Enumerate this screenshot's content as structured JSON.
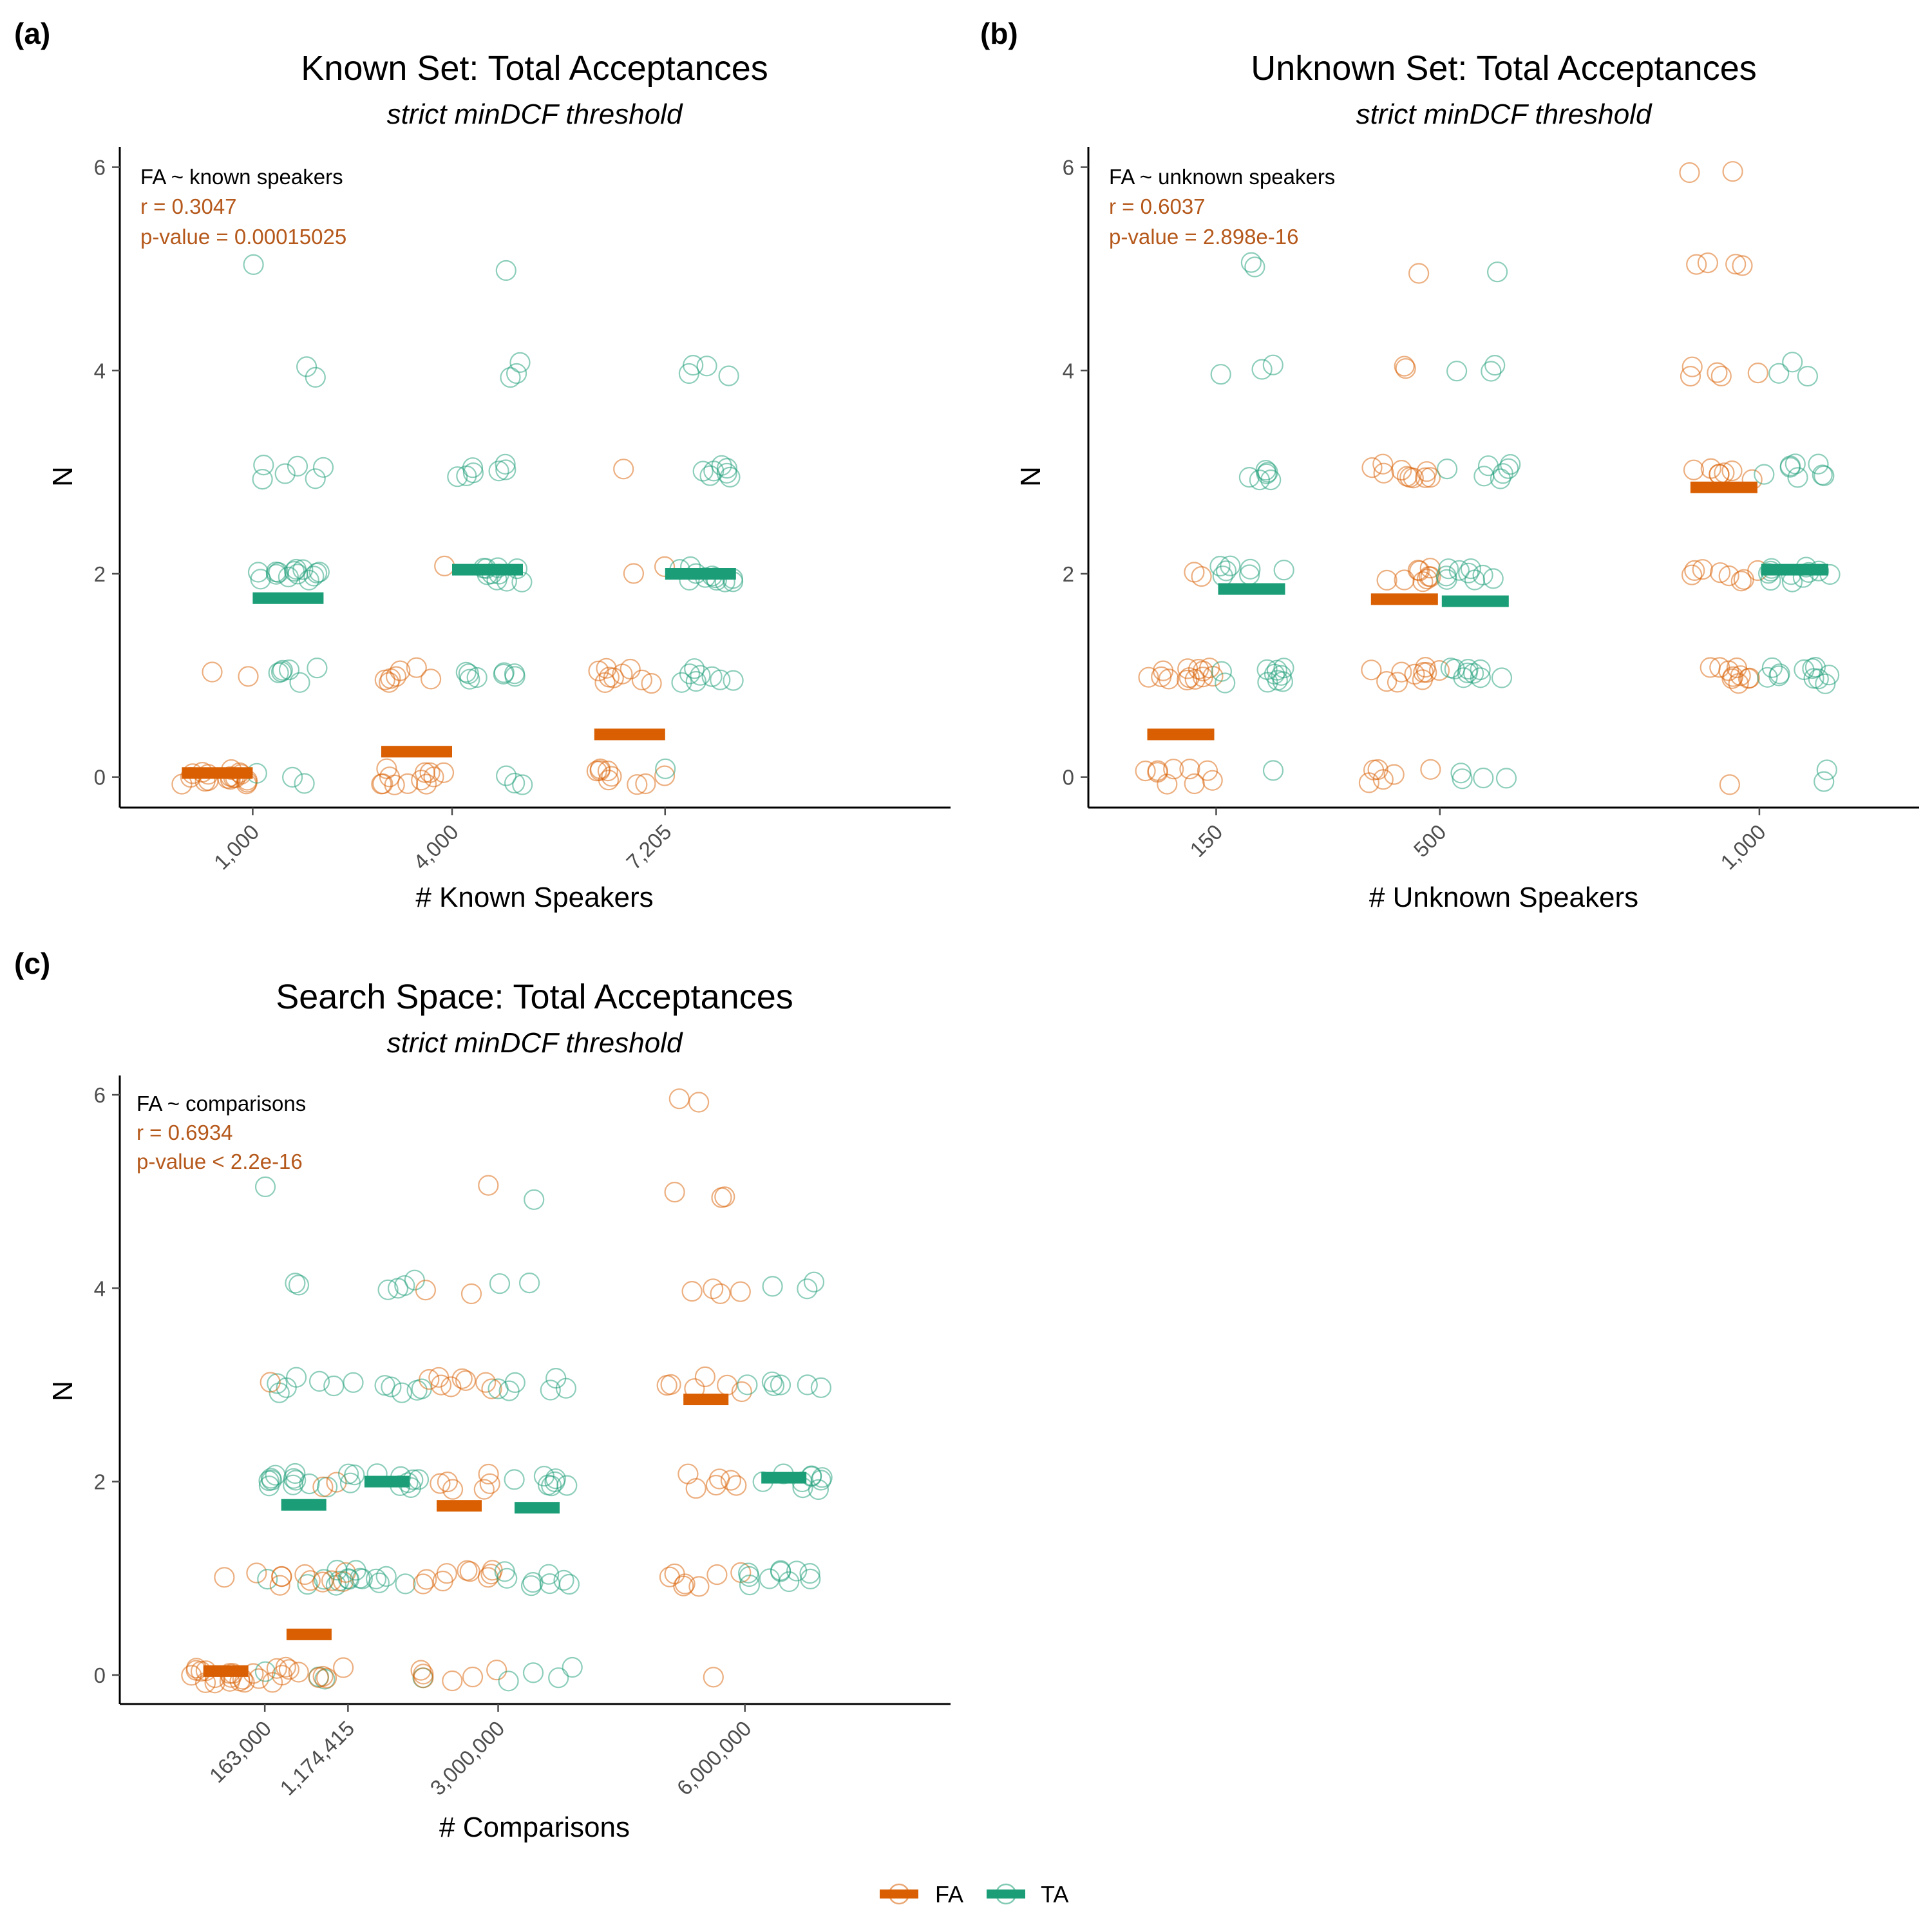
{
  "colors": {
    "FA": "#d95f02",
    "TA": "#1b9e77",
    "ann_stat": "#b5581b",
    "axis": "#000000",
    "tick": "#4d4d4d"
  },
  "legend": {
    "items": [
      {
        "key": "FA",
        "label": "FA"
      },
      {
        "key": "TA",
        "label": "TA"
      }
    ]
  },
  "chart_data": [
    {
      "panel_label": "(a)",
      "type": "scatter",
      "title": "Known Set: Total Acceptances",
      "subtitle": "strict minDCF threshold",
      "xlabel": "# Known Speakers",
      "ylabel": "N",
      "ylim": [
        -0.3,
        6.2
      ],
      "yticks": [
        0,
        2,
        4,
        6
      ],
      "xlim": [
        -1000,
        11500
      ],
      "x_ticks": [
        {
          "value": 1000,
          "label": "1,000"
        },
        {
          "value": 4000,
          "label": "4,000"
        },
        {
          "value": 7205,
          "label": "7,205"
        }
      ],
      "annotation": {
        "formula": "FA ~ known speakers",
        "r": "r = 0.3047",
        "p": "p-value = 0.00015025"
      },
      "means": [
        {
          "series": "FA",
          "x": 1000,
          "y": 0.04
        },
        {
          "series": "TA",
          "x": 1000,
          "y": 1.76
        },
        {
          "series": "FA",
          "x": 4000,
          "y": 0.25
        },
        {
          "series": "TA",
          "x": 4000,
          "y": 2.04
        },
        {
          "series": "FA",
          "x": 7205,
          "y": 0.42
        },
        {
          "series": "TA",
          "x": 7205,
          "y": 2.0
        }
      ],
      "points": [
        {
          "series": "FA",
          "x": 1000,
          "y": [
            0,
            0,
            0,
            0,
            0,
            0,
            0,
            0,
            0,
            0,
            0,
            0,
            0,
            0,
            0,
            0,
            0,
            0,
            1,
            1
          ]
        },
        {
          "series": "TA",
          "x": 1000,
          "y": [
            0,
            0,
            0,
            1,
            1,
            1,
            1,
            1,
            1,
            2,
            2,
            2,
            2,
            2,
            2,
            2,
            2,
            2,
            2,
            2,
            2,
            2,
            2,
            3,
            3,
            3,
            3,
            3,
            3,
            4,
            4,
            5
          ]
        },
        {
          "series": "FA",
          "x": 4000,
          "y": [
            0,
            0,
            0,
            0,
            0,
            0,
            0,
            0,
            0,
            0,
            0,
            0,
            1,
            1,
            1,
            1,
            1,
            1,
            1,
            2
          ]
        },
        {
          "series": "TA",
          "x": 4000,
          "y": [
            0,
            0,
            0,
            1,
            1,
            1,
            1,
            1,
            1,
            1,
            1,
            2,
            2,
            2,
            2,
            2,
            2,
            2,
            2,
            2,
            2,
            3,
            3,
            3,
            3,
            3,
            3,
            3,
            4,
            4,
            4,
            5
          ]
        },
        {
          "series": "FA",
          "x": 7205,
          "y": [
            0,
            0,
            0,
            0,
            0,
            0,
            0,
            0,
            0,
            1,
            1,
            1,
            1,
            1,
            1,
            1,
            1,
            1,
            2,
            2,
            3
          ]
        },
        {
          "series": "TA",
          "x": 7205,
          "y": [
            0,
            1,
            1,
            1,
            1,
            1,
            1,
            1,
            1,
            2,
            2,
            2,
            2,
            2,
            2,
            2,
            2,
            2,
            2,
            2,
            3,
            3,
            3,
            3,
            3,
            3,
            3,
            4,
            4,
            4,
            4
          ]
        }
      ]
    },
    {
      "panel_label": "(b)",
      "type": "scatter",
      "title": "Unknown Set: Total Acceptances",
      "subtitle": "strict minDCF threshold",
      "xlabel": "# Unknown Speakers",
      "ylabel": "N",
      "ylim": [
        -0.3,
        6.2
      ],
      "yticks": [
        0,
        2,
        4,
        6
      ],
      "xlim": [
        -50,
        1250
      ],
      "x_ticks": [
        {
          "value": 150,
          "label": "150"
        },
        {
          "value": 500,
          "label": "500"
        },
        {
          "value": 1000,
          "label": "1,000"
        }
      ],
      "annotation": {
        "formula": "FA ~ unknown speakers",
        "r": "r = 0.6037",
        "p": "p-value = 2.898e-16"
      },
      "means": [
        {
          "series": "FA",
          "x": 150,
          "y": 0.42
        },
        {
          "series": "TA",
          "x": 150,
          "y": 1.85
        },
        {
          "series": "FA",
          "x": 500,
          "y": 1.75
        },
        {
          "series": "TA",
          "x": 500,
          "y": 1.73
        },
        {
          "series": "FA",
          "x": 1000,
          "y": 2.85
        },
        {
          "series": "TA",
          "x": 1000,
          "y": 2.04
        }
      ],
      "points": [
        {
          "series": "FA",
          "x": 150,
          "y": [
            0,
            0,
            0,
            0,
            0,
            0,
            0,
            0,
            0,
            1,
            1,
            1,
            1,
            1,
            1,
            1,
            1,
            1,
            1,
            1,
            1,
            1,
            2,
            2
          ]
        },
        {
          "series": "TA",
          "x": 150,
          "y": [
            0,
            1,
            1,
            1,
            1,
            1,
            1,
            1,
            1,
            1,
            1,
            2,
            2,
            2,
            2,
            2,
            2,
            2,
            3,
            3,
            3,
            3,
            3,
            3,
            4,
            4,
            4,
            5,
            5
          ]
        },
        {
          "series": "FA",
          "x": 500,
          "y": [
            0,
            0,
            0,
            0,
            0,
            0,
            1,
            1,
            1,
            1,
            1,
            1,
            1,
            1,
            1,
            1,
            2,
            2,
            2,
            2,
            2,
            2,
            2,
            2,
            2,
            3,
            3,
            3,
            3,
            3,
            3,
            3,
            3,
            3,
            3,
            4,
            4,
            5
          ]
        },
        {
          "series": "TA",
          "x": 500,
          "y": [
            0,
            0,
            0,
            0,
            1,
            1,
            1,
            1,
            1,
            1,
            1,
            1,
            1,
            2,
            2,
            2,
            2,
            2,
            2,
            2,
            2,
            2,
            3,
            3,
            3,
            3,
            3,
            3,
            3,
            4,
            4,
            4,
            5
          ]
        },
        {
          "series": "FA",
          "x": 1000,
          "y": [
            0,
            1,
            1,
            1,
            1,
            1,
            1,
            1,
            1,
            1,
            1,
            2,
            2,
            2,
            2,
            2,
            2,
            2,
            2,
            3,
            3,
            3,
            3,
            3,
            3,
            3,
            4,
            4,
            4,
            4,
            4,
            5,
            5,
            5,
            5,
            6,
            6
          ]
        },
        {
          "series": "TA",
          "x": 1000,
          "y": [
            0,
            0,
            1,
            1,
            1,
            1,
            1,
            1,
            1,
            1,
            1,
            1,
            1,
            2,
            2,
            2,
            2,
            2,
            2,
            2,
            2,
            2,
            2,
            2,
            3,
            3,
            3,
            3,
            3,
            3,
            3,
            3,
            4,
            4,
            4
          ]
        }
      ]
    },
    {
      "panel_label": "(c)",
      "type": "scatter",
      "title": "Search Space: Total Acceptances",
      "subtitle": "strict minDCF threshold",
      "xlabel": "# Comparisons",
      "ylabel": "N",
      "ylim": [
        -0.3,
        6.2
      ],
      "yticks": [
        0,
        2,
        4,
        6
      ],
      "xlim": [
        -1600000,
        8500000
      ],
      "x_ticks": [
        {
          "value": 163000,
          "label": "163,000"
        },
        {
          "value": 1174415,
          "label": "1,174,415"
        },
        {
          "value": 3000000,
          "label": "3,000,000"
        },
        {
          "value": 6000000,
          "label": "6,000,000"
        }
      ],
      "annotation": {
        "formula": "FA ~ comparisons",
        "r": "r = 0.6934",
        "p": "p-value < 2.2e-16"
      },
      "means": [
        {
          "series": "FA",
          "x": 163000,
          "y": 0.04
        },
        {
          "series": "TA",
          "x": 163000,
          "y": 1.76
        },
        {
          "series": "FA",
          "x": 1174415,
          "y": 0.42
        },
        {
          "series": "TA",
          "x": 1174415,
          "y": 2.0
        },
        {
          "series": "FA",
          "x": 3000000,
          "y": 1.75
        },
        {
          "series": "TA",
          "x": 3000000,
          "y": 1.73
        },
        {
          "series": "FA",
          "x": 6000000,
          "y": 2.85
        },
        {
          "series": "TA",
          "x": 6000000,
          "y": 2.04
        }
      ],
      "points": [
        {
          "series": "FA",
          "x": 163000,
          "y": [
            0,
            0,
            0,
            0,
            0,
            0,
            0,
            0,
            0,
            0,
            0,
            0,
            0,
            0,
            0,
            0,
            0,
            1,
            1
          ]
        },
        {
          "series": "TA",
          "x": 163000,
          "y": [
            0,
            0,
            0,
            1,
            1,
            1,
            1,
            1,
            1,
            2,
            2,
            2,
            2,
            2,
            2,
            2,
            2,
            2,
            2,
            2,
            3,
            3,
            3,
            3,
            3,
            3,
            4,
            4,
            5
          ]
        },
        {
          "series": "FA",
          "x": 1174415,
          "y": [
            0,
            0,
            0,
            0,
            0,
            0,
            0,
            0,
            0,
            0,
            1,
            1,
            1,
            1,
            1,
            1,
            1,
            1,
            1,
            2,
            2,
            3
          ]
        },
        {
          "series": "TA",
          "x": 1174415,
          "y": [
            0,
            1,
            1,
            1,
            1,
            1,
            1,
            1,
            1,
            1,
            2,
            2,
            2,
            2,
            2,
            2,
            2,
            2,
            2,
            2,
            3,
            3,
            3,
            3,
            3,
            3,
            4,
            4,
            4,
            4
          ]
        },
        {
          "series": "FA",
          "x": 3000000,
          "y": [
            0,
            0,
            0,
            0,
            0,
            0,
            1,
            1,
            1,
            1,
            1,
            1,
            1,
            1,
            1,
            2,
            2,
            2,
            2,
            2,
            2,
            3,
            3,
            3,
            3,
            3,
            3,
            3,
            3,
            4,
            4,
            5
          ]
        },
        {
          "series": "TA",
          "x": 3000000,
          "y": [
            0,
            0,
            0,
            0,
            1,
            1,
            1,
            1,
            1,
            1,
            1,
            1,
            2,
            2,
            2,
            2,
            2,
            2,
            2,
            3,
            3,
            3,
            3,
            3,
            3,
            4,
            4,
            5
          ]
        },
        {
          "series": "FA",
          "x": 6000000,
          "y": [
            0,
            1,
            1,
            1,
            1,
            1,
            1,
            1,
            2,
            2,
            2,
            2,
            2,
            2,
            3,
            3,
            3,
            3,
            3,
            3,
            4,
            4,
            4,
            4,
            5,
            5,
            5,
            6,
            6
          ]
        },
        {
          "series": "TA",
          "x": 6000000,
          "y": [
            1,
            1,
            1,
            1,
            1,
            1,
            1,
            1,
            1,
            1,
            2,
            2,
            2,
            2,
            2,
            2,
            2,
            2,
            2,
            3,
            3,
            3,
            3,
            3,
            3,
            4,
            4,
            4
          ]
        }
      ]
    }
  ]
}
